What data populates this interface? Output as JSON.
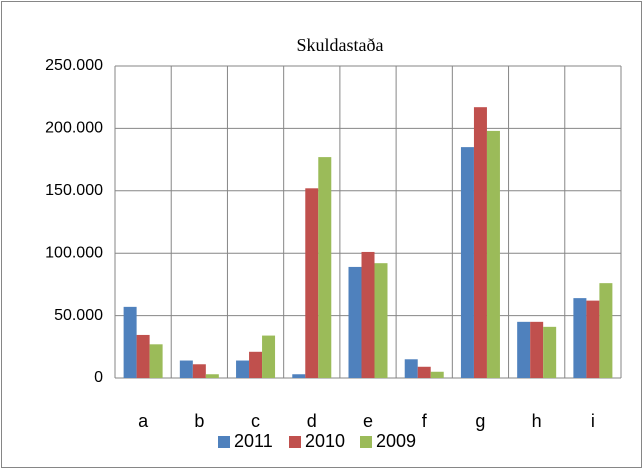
{
  "chart_data": {
    "type": "bar",
    "title": "Skuldastaða",
    "categories": [
      "a",
      "b",
      "c",
      "d",
      "e",
      "f",
      "g",
      "h",
      "i"
    ],
    "series": [
      {
        "name": "2011",
        "color": "#4f81bd",
        "values": [
          57000,
          14000,
          14000,
          3000,
          89000,
          15000,
          185000,
          45000,
          64000
        ]
      },
      {
        "name": "2010",
        "color": "#c0504d",
        "values": [
          34500,
          11000,
          21000,
          152000,
          101000,
          9000,
          217000,
          45000,
          62000
        ]
      },
      {
        "name": "2009",
        "color": "#9bbb59",
        "values": [
          27000,
          3000,
          34000,
          177000,
          92000,
          5000,
          198000,
          41000,
          76000
        ]
      }
    ],
    "ylim": [
      0,
      250000
    ],
    "yticks": [
      0,
      {
        "value": 50000,
        "label": "50.000"
      },
      {
        "value": 100000,
        "label": "100.000"
      },
      {
        "value": 150000,
        "label": "150.000"
      },
      {
        "value": 200000,
        "label": "200.000"
      },
      {
        "value": 250000,
        "label": "250.000"
      }
    ],
    "grid": true,
    "legend": "bottom"
  }
}
